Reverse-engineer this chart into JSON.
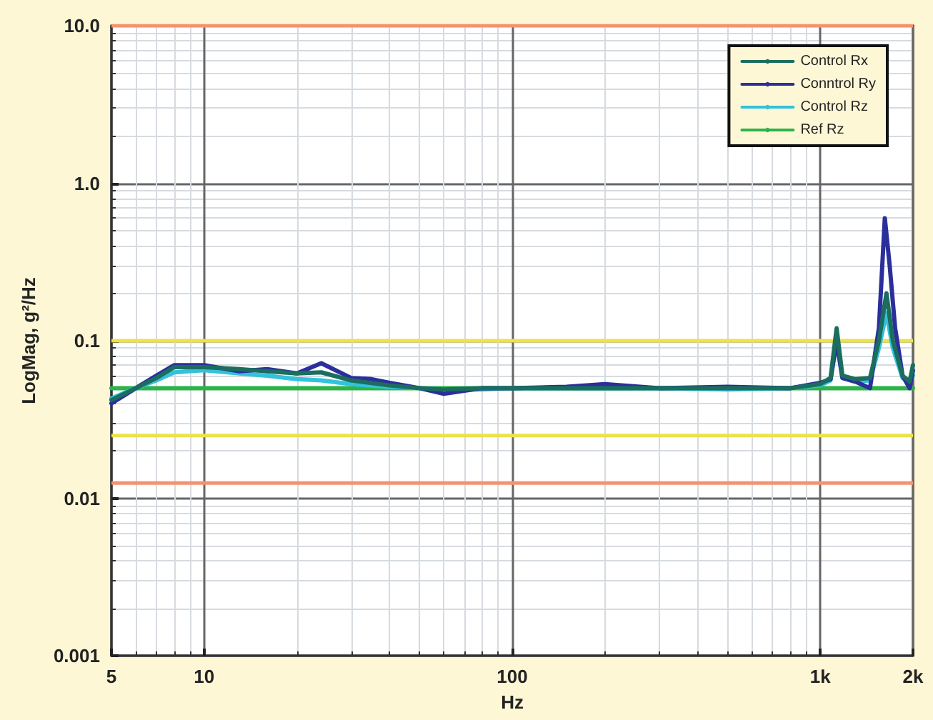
{
  "chart_data": {
    "type": "line",
    "xlabel": "Hz",
    "ylabel": "LogMag, g²/Hz",
    "log": "xy",
    "grid": true,
    "legend": "top right",
    "marker": "none",
    "line_style": "solid",
    "xlim": [
      5,
      2000
    ],
    "xticks": [
      5,
      10,
      100,
      {
        "value": 1000,
        "label": "1k"
      },
      {
        "value": 2000,
        "label": "2k"
      }
    ],
    "ylim": [
      0.001,
      10
    ],
    "yticks": [
      0.001,
      0.01,
      0.1,
      {
        "value": 1,
        "label": "1.0"
      },
      {
        "value": 10,
        "label": "10.0"
      }
    ],
    "series": [
      {
        "name": "Control Rx",
        "color": "#1b6e5e",
        "x": [
          5,
          6,
          7,
          8,
          10,
          13,
          16,
          20,
          24,
          30,
          40,
          50,
          60,
          80,
          100,
          150,
          200,
          300,
          500,
          800,
          1000,
          1080,
          1130,
          1180,
          1300,
          1450,
          1550,
          1640,
          1720,
          1850,
          1950,
          2000
        ],
        "values": [
          0.042,
          0.05,
          0.058,
          0.068,
          0.068,
          0.066,
          0.064,
          0.062,
          0.063,
          0.056,
          0.052,
          0.05,
          0.049,
          0.05,
          0.05,
          0.05,
          0.05,
          0.05,
          0.05,
          0.05,
          0.053,
          0.058,
          0.12,
          0.06,
          0.057,
          0.058,
          0.1,
          0.2,
          0.1,
          0.06,
          0.055,
          0.07
        ]
      },
      {
        "name": "Conntrol Ry",
        "color": "#2b2f9c",
        "x": [
          5,
          6,
          7,
          8,
          10,
          13,
          16,
          20,
          24,
          30,
          35,
          40,
          50,
          60,
          80,
          100,
          150,
          200,
          300,
          500,
          800,
          1000,
          1080,
          1130,
          1180,
          1300,
          1450,
          1550,
          1620,
          1680,
          1750,
          1850,
          1950,
          2000
        ],
        "values": [
          0.04,
          0.05,
          0.06,
          0.07,
          0.07,
          0.064,
          0.066,
          0.062,
          0.072,
          0.058,
          0.057,
          0.054,
          0.05,
          0.046,
          0.05,
          0.05,
          0.051,
          0.053,
          0.05,
          0.051,
          0.05,
          0.054,
          0.057,
          0.1,
          0.058,
          0.055,
          0.05,
          0.12,
          0.6,
          0.3,
          0.12,
          0.06,
          0.05,
          0.065
        ]
      },
      {
        "name": "Control Rz",
        "color": "#33c2dc",
        "x": [
          5,
          6,
          7,
          8,
          10,
          13,
          16,
          20,
          24,
          30,
          40,
          50,
          60,
          80,
          100,
          150,
          200,
          300,
          500,
          800,
          1000,
          1080,
          1130,
          1180,
          1300,
          1450,
          1550,
          1640,
          1720,
          1850,
          1950,
          2000
        ],
        "values": [
          0.043,
          0.05,
          0.056,
          0.063,
          0.065,
          0.062,
          0.06,
          0.057,
          0.056,
          0.053,
          0.051,
          0.05,
          0.049,
          0.049,
          0.05,
          0.05,
          0.05,
          0.05,
          0.049,
          0.05,
          0.052,
          0.056,
          0.1,
          0.058,
          0.055,
          0.056,
          0.09,
          0.15,
          0.09,
          0.058,
          0.055,
          0.06
        ]
      },
      {
        "name": "Ref Rz",
        "color": "#2db34a",
        "x": [
          5,
          2000
        ],
        "values": [
          0.05,
          0.05
        ]
      }
    ],
    "ref_lines": [
      {
        "axis": "y",
        "value": 10,
        "color": "#f4936e"
      },
      {
        "axis": "y",
        "value": 0.1,
        "color": "#ece24a"
      },
      {
        "axis": "y",
        "value": 0.025,
        "color": "#ece24a"
      },
      {
        "axis": "y",
        "value": 0.0125,
        "color": "#f4936e"
      }
    ]
  }
}
